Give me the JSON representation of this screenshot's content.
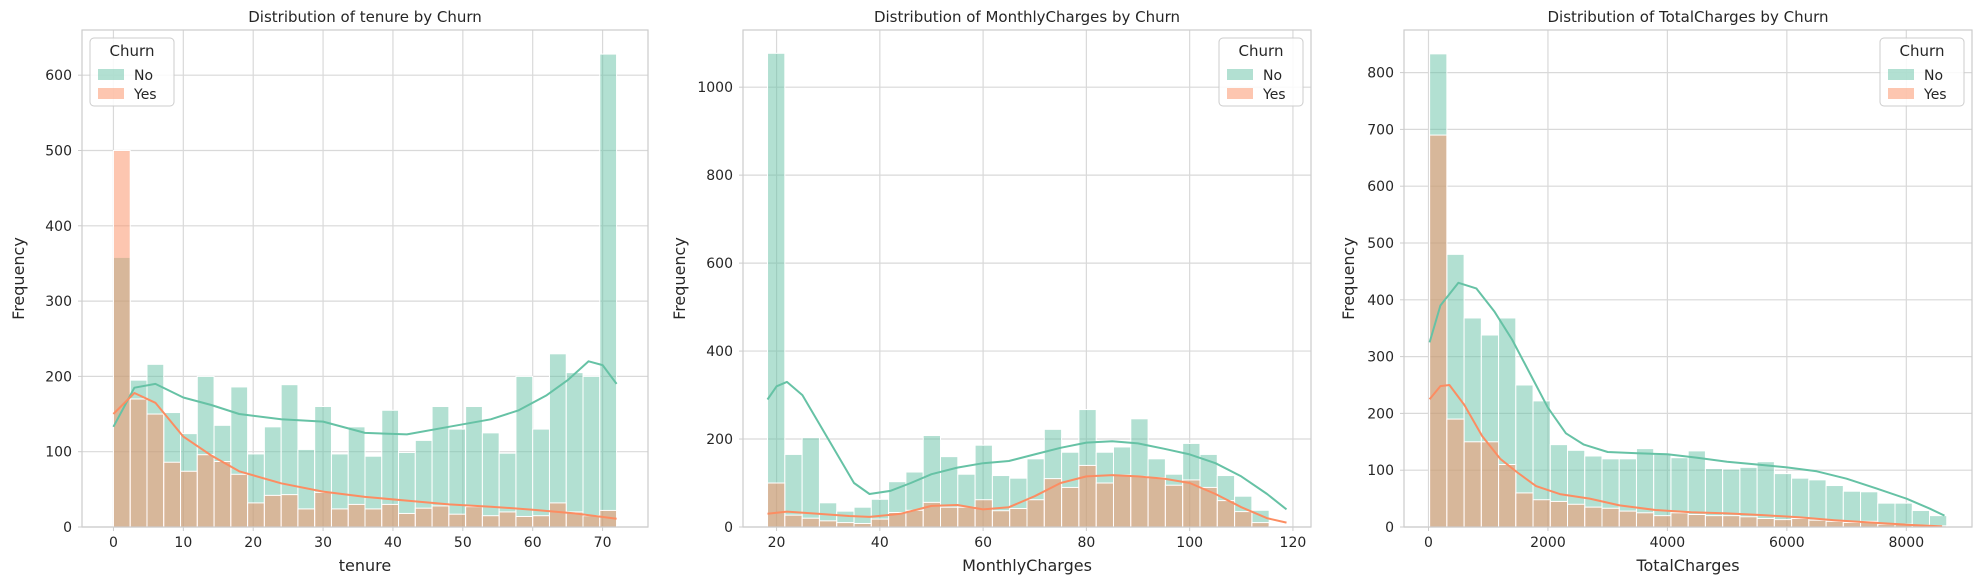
{
  "colors": {
    "No": "#66c2a5",
    "Yes": "#fc8d62",
    "grid": "#d9d9d9",
    "frame": "#cccccc",
    "text": "#262626"
  },
  "chart_data": [
    {
      "type": "bar",
      "title": "Distribution of tenure by Churn",
      "xlabel": "tenure",
      "ylabel": "Frequency",
      "xlim": [
        -4.5,
        76.5
      ],
      "ylim": [
        0,
        660
      ],
      "xticks": [
        0,
        10,
        20,
        30,
        40,
        50,
        60,
        70
      ],
      "yticks": [
        0,
        100,
        200,
        300,
        400,
        500,
        600
      ],
      "grid": true,
      "legend": {
        "title": "Churn",
        "entries": [
          "No",
          "Yes"
        ],
        "placement": "top-left"
      },
      "bin_start": 0,
      "bin_width": 2.4,
      "series": [
        {
          "name": "No",
          "values": [
            358,
            195,
            216,
            152,
            124,
            200,
            135,
            186,
            97,
            133,
            189,
            103,
            160,
            97,
            133,
            94,
            155,
            99,
            115,
            160,
            130,
            160,
            125,
            98,
            200,
            130,
            230,
            205,
            200,
            628
          ],
          "kde": [
            [
              0,
              133
            ],
            [
              3,
              185
            ],
            [
              6,
              190
            ],
            [
              10,
              172
            ],
            [
              14,
              162
            ],
            [
              18,
              150
            ],
            [
              24,
              143
            ],
            [
              30,
              140
            ],
            [
              36,
              125
            ],
            [
              42,
              123
            ],
            [
              48,
              133
            ],
            [
              54,
              143
            ],
            [
              58,
              155
            ],
            [
              62,
              175
            ],
            [
              65,
              195
            ],
            [
              68,
              220
            ],
            [
              70,
              215
            ],
            [
              72,
              190
            ]
          ]
        },
        {
          "name": "Yes",
          "values": [
            500,
            170,
            150,
            86,
            74,
            96,
            87,
            70,
            32,
            42,
            43,
            24,
            46,
            24,
            30,
            24,
            30,
            18,
            25,
            28,
            17,
            27,
            15,
            20,
            14,
            15,
            32,
            20,
            15,
            22
          ],
          "kde": [
            [
              0,
              150
            ],
            [
              3,
              178
            ],
            [
              6,
              165
            ],
            [
              10,
              120
            ],
            [
              14,
              95
            ],
            [
              18,
              74
            ],
            [
              24,
              58
            ],
            [
              30,
              47
            ],
            [
              36,
              40
            ],
            [
              42,
              35
            ],
            [
              48,
              30
            ],
            [
              54,
              27
            ],
            [
              60,
              23
            ],
            [
              66,
              18
            ],
            [
              72,
              11
            ]
          ]
        }
      ]
    },
    {
      "type": "bar",
      "title": "Distribution of MonthlyCharges by Churn",
      "xlabel": "MonthlyCharges",
      "ylabel": "Frequency",
      "xlim": [
        13.5,
        123.5
      ],
      "ylim": [
        0,
        1130
      ],
      "xticks": [
        20,
        40,
        60,
        80,
        100,
        120
      ],
      "yticks": [
        0,
        200,
        400,
        600,
        800,
        1000
      ],
      "grid": true,
      "legend": {
        "title": "Churn",
        "entries": [
          "No",
          "Yes"
        ],
        "placement": "top-right"
      },
      "bin_start": 18.25,
      "bin_width": 3.35,
      "series": [
        {
          "name": "No",
          "values": [
            1077,
            165,
            203,
            55,
            36,
            45,
            63,
            103,
            125,
            208,
            160,
            120,
            186,
            117,
            111,
            155,
            222,
            170,
            267,
            170,
            182,
            246,
            155,
            120,
            190,
            165,
            117,
            70,
            38,
            3
          ],
          "kde": [
            [
              18.25,
              290
            ],
            [
              20,
              320
            ],
            [
              22,
              330
            ],
            [
              25,
              300
            ],
            [
              30,
              200
            ],
            [
              35,
              100
            ],
            [
              38,
              75
            ],
            [
              42,
              82
            ],
            [
              46,
              100
            ],
            [
              50,
              120
            ],
            [
              55,
              135
            ],
            [
              60,
              145
            ],
            [
              65,
              150
            ],
            [
              70,
              165
            ],
            [
              75,
              180
            ],
            [
              80,
              192
            ],
            [
              85,
              195
            ],
            [
              90,
              190
            ],
            [
              95,
              178
            ],
            [
              100,
              165
            ],
            [
              105,
              145
            ],
            [
              110,
              115
            ],
            [
              115,
              75
            ],
            [
              118.75,
              40
            ]
          ]
        },
        {
          "name": "Yes",
          "values": [
            100,
            27,
            20,
            14,
            10,
            8,
            18,
            33,
            38,
            56,
            45,
            45,
            62,
            37,
            42,
            62,
            110,
            90,
            140,
            100,
            118,
            115,
            112,
            95,
            107,
            90,
            60,
            35,
            10,
            2
          ],
          "kde": [
            [
              18.25,
              30
            ],
            [
              22,
              35
            ],
            [
              28,
              30
            ],
            [
              34,
              25
            ],
            [
              38,
              23
            ],
            [
              44,
              30
            ],
            [
              50,
              48
            ],
            [
              55,
              50
            ],
            [
              60,
              40
            ],
            [
              65,
              45
            ],
            [
              70,
              70
            ],
            [
              75,
              100
            ],
            [
              80,
              115
            ],
            [
              85,
              118
            ],
            [
              90,
              115
            ],
            [
              95,
              110
            ],
            [
              100,
              100
            ],
            [
              105,
              75
            ],
            [
              110,
              45
            ],
            [
              115,
              20
            ],
            [
              118.75,
              10
            ]
          ]
        }
      ]
    },
    {
      "type": "bar",
      "title": "Distribution of TotalCharges by Churn",
      "xlabel": "TotalCharges",
      "ylabel": "Frequency",
      "xlim": [
        -410,
        9100
      ],
      "ylim": [
        0,
        875
      ],
      "xticks": [
        0,
        2000,
        4000,
        6000,
        8000
      ],
      "yticks": [
        0,
        100,
        200,
        300,
        400,
        500,
        600,
        700,
        800
      ],
      "grid": true,
      "legend": {
        "title": "Churn",
        "entries": [
          "No",
          "Yes"
        ],
        "placement": "top-right"
      },
      "bin_start": 19,
      "bin_width": 288.6,
      "series": [
        {
          "name": "No",
          "values": [
            833,
            480,
            368,
            338,
            368,
            250,
            222,
            145,
            135,
            125,
            120,
            120,
            138,
            128,
            122,
            134,
            103,
            102,
            105,
            115,
            94,
            86,
            83,
            73,
            63,
            62,
            42,
            42,
            29,
            20
          ],
          "kde": [
            [
              19,
              325
            ],
            [
              200,
              390
            ],
            [
              500,
              430
            ],
            [
              800,
              420
            ],
            [
              1100,
              380
            ],
            [
              1400,
              330
            ],
            [
              1700,
              270
            ],
            [
              2000,
              210
            ],
            [
              2300,
              165
            ],
            [
              2600,
              145
            ],
            [
              3000,
              132
            ],
            [
              3500,
              130
            ],
            [
              4000,
              128
            ],
            [
              4500,
              122
            ],
            [
              5000,
              115
            ],
            [
              5500,
              110
            ],
            [
              6000,
              105
            ],
            [
              6500,
              98
            ],
            [
              7000,
              85
            ],
            [
              7500,
              68
            ],
            [
              8000,
              50
            ],
            [
              8400,
              32
            ],
            [
              8640,
              20
            ]
          ]
        },
        {
          "name": "Yes",
          "values": [
            690,
            190,
            150,
            150,
            110,
            60,
            48,
            45,
            40,
            35,
            33,
            28,
            25,
            20,
            25,
            22,
            20,
            20,
            18,
            15,
            13,
            15,
            12,
            10,
            8,
            10,
            5,
            5,
            3,
            2
          ],
          "kde": [
            [
              19,
              225
            ],
            [
              200,
              248
            ],
            [
              350,
              250
            ],
            [
              600,
              215
            ],
            [
              900,
              160
            ],
            [
              1200,
              120
            ],
            [
              1500,
              95
            ],
            [
              1800,
              72
            ],
            [
              2200,
              58
            ],
            [
              2700,
              50
            ],
            [
              3200,
              38
            ],
            [
              3800,
              30
            ],
            [
              4400,
              26
            ],
            [
              5000,
              24
            ],
            [
              5600,
              21
            ],
            [
              6200,
              17
            ],
            [
              6800,
              12
            ],
            [
              7400,
              8
            ],
            [
              8000,
              4
            ],
            [
              8600,
              1
            ]
          ]
        }
      ]
    }
  ]
}
